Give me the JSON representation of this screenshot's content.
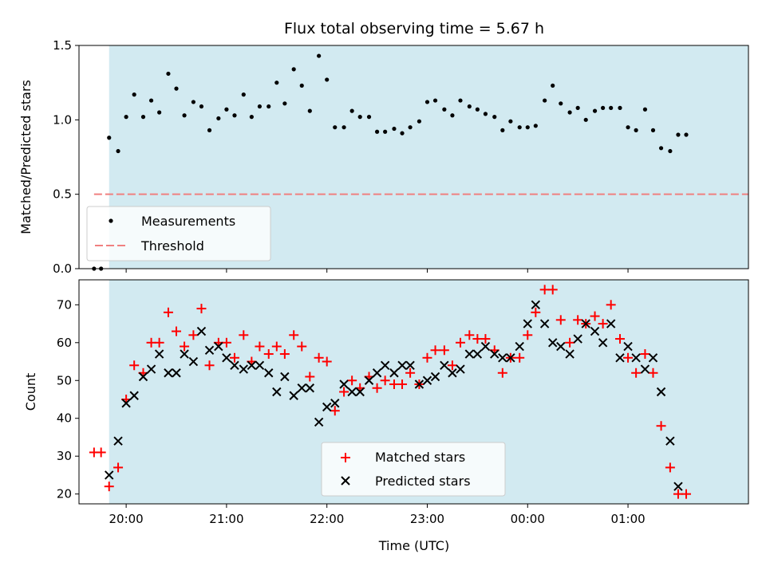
{
  "title": "Flux total observing time = 5.67 h",
  "xlabel": "Time (UTC)",
  "colors": {
    "shade": "#add8e6",
    "matched": "#ff0000",
    "predicted": "#000000",
    "threshold": "#f08080",
    "measurements": "#000000"
  },
  "chart_data": [
    {
      "type": "scatter",
      "panel": "top",
      "ylabel": "Matched/Predicted stars",
      "ylim": [
        0,
        1.5
      ],
      "yticks": [
        "0.0",
        "0.5",
        "1.0",
        "1.5"
      ],
      "xticks": [
        "20:00",
        "21:00",
        "22:00",
        "23:00",
        "00:00",
        "01:00"
      ],
      "xlim_hours": [
        19.53,
        26.2
      ],
      "shaded_range_hours": [
        19.83,
        26.5
      ],
      "legend_position": "lower left",
      "threshold": {
        "name": "Threshold",
        "value": 0.5,
        "x_range_hours": [
          19.68,
          26.46
        ]
      },
      "series": [
        {
          "name": "Measurements",
          "x_hours": [
            19.68,
            19.75,
            19.83,
            19.92,
            20.0,
            20.08,
            20.17,
            20.25,
            20.33,
            20.42,
            20.5,
            20.58,
            20.67,
            20.75,
            20.83,
            20.92,
            21.0,
            21.08,
            21.17,
            21.25,
            21.33,
            21.42,
            21.5,
            21.58,
            21.67,
            21.75,
            21.83,
            21.92,
            22.0,
            22.08,
            22.17,
            22.25,
            22.33,
            22.42,
            22.5,
            22.58,
            22.67,
            22.75,
            22.83,
            22.92,
            23.0,
            23.08,
            23.17,
            23.25,
            23.33,
            23.42,
            23.5,
            23.58,
            23.67,
            23.75,
            23.83,
            23.92,
            24.0,
            24.08,
            24.17,
            24.25,
            24.33,
            24.42,
            24.5,
            24.58,
            24.67,
            24.75,
            24.83,
            24.92,
            25.0,
            25.08,
            25.17,
            25.25,
            25.33,
            25.42,
            25.5,
            25.58
          ],
          "values": [
            0.0,
            0.0,
            0.88,
            0.79,
            1.02,
            1.17,
            1.02,
            1.13,
            1.05,
            1.31,
            1.21,
            1.03,
            1.12,
            1.09,
            0.93,
            1.01,
            1.07,
            1.03,
            1.17,
            1.02,
            1.09,
            1.09,
            1.25,
            1.11,
            1.34,
            1.23,
            1.06,
            1.43,
            1.27,
            0.95,
            0.95,
            1.06,
            1.02,
            1.02,
            0.92,
            0.92,
            0.94,
            0.91,
            0.95,
            0.99,
            1.12,
            1.13,
            1.07,
            1.03,
            1.13,
            1.09,
            1.07,
            1.04,
            1.02,
            0.93,
            0.99,
            0.95,
            0.95,
            0.96,
            1.13,
            1.23,
            1.11,
            1.05,
            1.08,
            1.0,
            1.06,
            1.08,
            1.08,
            1.08,
            0.95,
            0.93,
            1.07,
            0.93,
            0.81,
            0.79,
            0.9,
            0.9
          ]
        }
      ]
    },
    {
      "type": "scatter",
      "panel": "bottom",
      "ylabel": "Count",
      "ylim": [
        17.4,
        76.6
      ],
      "yticks": [
        "20",
        "30",
        "40",
        "50",
        "60",
        "70"
      ],
      "xticks": [
        "20:00",
        "21:00",
        "22:00",
        "23:00",
        "00:00",
        "01:00"
      ],
      "xlim_hours": [
        19.53,
        26.2
      ],
      "shaded_range_hours": [
        19.83,
        26.5
      ],
      "legend_position": "lower center",
      "series": [
        {
          "name": "Matched stars",
          "x_hours": [
            19.68,
            19.75,
            19.83,
            19.92,
            20.0,
            20.08,
            20.17,
            20.25,
            20.33,
            20.42,
            20.5,
            20.58,
            20.67,
            20.75,
            20.83,
            20.92,
            21.0,
            21.08,
            21.17,
            21.25,
            21.33,
            21.42,
            21.5,
            21.58,
            21.67,
            21.75,
            21.83,
            21.92,
            22.0,
            22.08,
            22.17,
            22.25,
            22.33,
            22.42,
            22.5,
            22.58,
            22.67,
            22.75,
            22.83,
            22.92,
            23.0,
            23.08,
            23.17,
            23.25,
            23.33,
            23.42,
            23.5,
            23.58,
            23.67,
            23.75,
            23.83,
            23.92,
            24.0,
            24.08,
            24.17,
            24.25,
            24.33,
            24.42,
            24.5,
            24.58,
            24.67,
            24.75,
            24.83,
            24.92,
            25.0,
            25.08,
            25.17,
            25.25,
            25.33,
            25.42,
            25.5,
            25.58
          ],
          "values": [
            31,
            31,
            22,
            27,
            45,
            54,
            52,
            60,
            60,
            68,
            63,
            59,
            62,
            69,
            54,
            60,
            60,
            56,
            62,
            55,
            59,
            57,
            59,
            57,
            62,
            59,
            51,
            56,
            55,
            42,
            47,
            50,
            48,
            51,
            48,
            50,
            49,
            49,
            52,
            49,
            56,
            58,
            58,
            54,
            60,
            62,
            61,
            61,
            58,
            52,
            56,
            56,
            62,
            68,
            74,
            74,
            66,
            60,
            66,
            65,
            67,
            65,
            70,
            61,
            56,
            52,
            57,
            52,
            38,
            27,
            20,
            20
          ]
        },
        {
          "name": "Predicted stars",
          "x_hours": [
            19.83,
            19.92,
            20.0,
            20.08,
            20.17,
            20.25,
            20.33,
            20.42,
            20.5,
            20.58,
            20.67,
            20.75,
            20.83,
            20.92,
            21.0,
            21.08,
            21.17,
            21.25,
            21.33,
            21.42,
            21.5,
            21.58,
            21.67,
            21.75,
            21.83,
            21.92,
            22.0,
            22.08,
            22.17,
            22.25,
            22.33,
            22.42,
            22.5,
            22.58,
            22.67,
            22.75,
            22.83,
            22.92,
            23.0,
            23.08,
            23.17,
            23.25,
            23.33,
            23.42,
            23.5,
            23.58,
            23.67,
            23.75,
            23.83,
            23.92,
            24.0,
            24.08,
            24.17,
            24.25,
            24.33,
            24.42,
            24.5,
            24.58,
            24.67,
            24.75,
            24.83,
            24.92,
            25.0,
            25.08,
            25.17,
            25.25,
            25.33,
            25.42,
            25.5
          ],
          "values": [
            25,
            34,
            44,
            46,
            51,
            53,
            57,
            52,
            52,
            57,
            55,
            63,
            58,
            59,
            56,
            54,
            53,
            54,
            54,
            52,
            47,
            51,
            46,
            48,
            48,
            39,
            43,
            44,
            49,
            47,
            47,
            50,
            52,
            54,
            52,
            54,
            54,
            49,
            50,
            51,
            54,
            52,
            53,
            57,
            57,
            59,
            57,
            56,
            56,
            59,
            65,
            70,
            65,
            60,
            59,
            57,
            61,
            65,
            63,
            60,
            65,
            56,
            59,
            56,
            53,
            56,
            47,
            34,
            22
          ]
        }
      ]
    }
  ]
}
